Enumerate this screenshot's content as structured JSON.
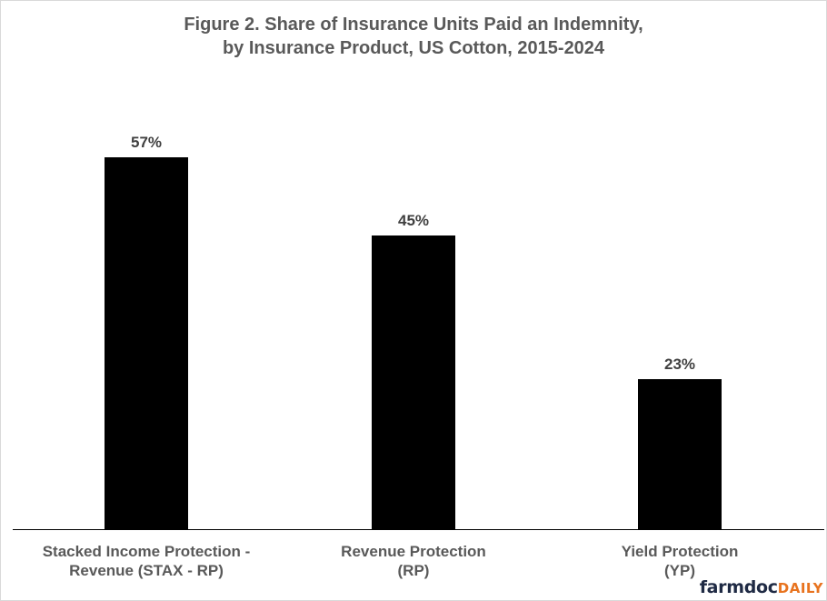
{
  "title": {
    "line1": "Figure 2.  Share of Insurance Units Paid an Indemnity,",
    "line2": "by Insurance Product, US Cotton, 2015-2024"
  },
  "bars": [
    {
      "label_line1": "Stacked Income Protection -",
      "label_line2": "Revenue (STAX - RP)",
      "value": 57,
      "value_label": "57%"
    },
    {
      "label_line1": "Revenue Protection",
      "label_line2": "(RP)",
      "value": 45,
      "value_label": "45%"
    },
    {
      "label_line1": "Yield Protection",
      "label_line2": "(YP)",
      "value": 23,
      "value_label": "23%"
    }
  ],
  "logo": {
    "part1": "farmdoc",
    "part2": "DAILY"
  },
  "colors": {
    "bar": "#000000",
    "title": "#595959",
    "logo_dark": "#1f2a44",
    "logo_accent": "#e8731f"
  },
  "chart_data": {
    "type": "bar",
    "title": "Figure 2.  Share of Insurance Units Paid an Indemnity, by Insurance Product, US Cotton, 2015-2024",
    "categories": [
      "Stacked Income Protection - Revenue (STAX - RP)",
      "Revenue Protection (RP)",
      "Yield Protection (YP)"
    ],
    "values": [
      57,
      45,
      23
    ],
    "value_labels": [
      "57%",
      "45%",
      "23%"
    ],
    "xlabel": "",
    "ylabel": "",
    "ylim": [
      0,
      80
    ],
    "grid": false,
    "legend": "none",
    "units": "percent"
  }
}
